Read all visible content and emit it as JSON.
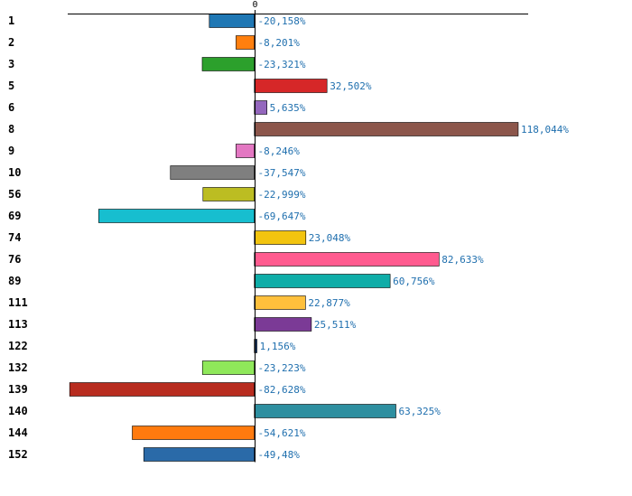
{
  "chart_data": {
    "type": "bar",
    "orientation": "horizontal",
    "title": "",
    "xlabel": "",
    "ylabel": "",
    "zero_tick_label": "0",
    "xlim": [
      -83.5,
      122.5
    ],
    "categories": [
      "1",
      "2",
      "3",
      "5",
      "6",
      "8",
      "9",
      "10",
      "56",
      "69",
      "74",
      "76",
      "89",
      "111",
      "113",
      "122",
      "132",
      "139",
      "140",
      "144",
      "152"
    ],
    "values": [
      -20.158,
      -8.201,
      -23.321,
      32.502,
      5.635,
      118.044,
      -8.246,
      -37.547,
      -22.999,
      -69.647,
      23.048,
      82.633,
      60.756,
      22.877,
      25.511,
      1.156,
      -23.223,
      -82.628,
      63.325,
      -54.621,
      -49.48
    ],
    "value_labels": [
      "-20,158%",
      "-8,201%",
      "-23,321%",
      "32,502%",
      "5,635%",
      "118,044%",
      "-8,246%",
      "-37,547%",
      "-22,999%",
      "-69,647%",
      "23,048%",
      "82,633%",
      "60,756%",
      "22,877%",
      "25,511%",
      "1,156%",
      "-23,223%",
      "-82,628%",
      "63,325%",
      "-54,621%",
      "-49,48%"
    ],
    "colors": [
      "#1f77b4",
      "#ff7f0e",
      "#2ca02c",
      "#d62728",
      "#9467bd",
      "#8c564b",
      "#e377c2",
      "#7f7f7f",
      "#bcbd22",
      "#17becf",
      "#f2c40f",
      "#ff5b8f",
      "#0fada8",
      "#ffc03c",
      "#7b3a96",
      "#1b3a6b",
      "#8fe85a",
      "#b82c1f",
      "#2e8fa0",
      "#ff7a0e",
      "#2a6aa8"
    ]
  }
}
